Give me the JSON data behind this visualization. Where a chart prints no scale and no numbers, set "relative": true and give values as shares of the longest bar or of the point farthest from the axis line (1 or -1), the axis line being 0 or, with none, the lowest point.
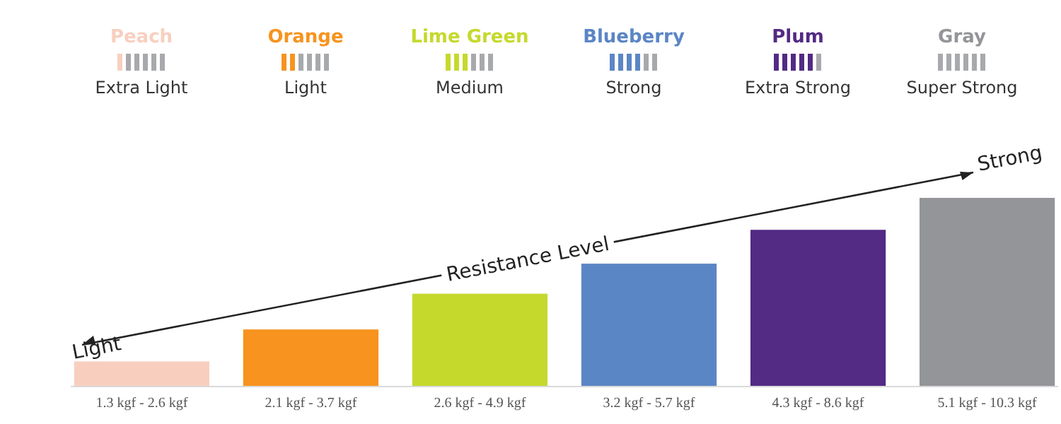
{
  "chart_data": {
    "type": "bar",
    "relative": true,
    "legend": "top",
    "categories": [
      "1.3 kgf - 2.6 kgf",
      "2.1 kgf - 3.7 kgf",
      "2.6 kgf - 4.9 kgf",
      "3.2 kgf - 5.7 kgf",
      "4.3 kgf - 8.6 kgf",
      "5.1 kgf - 10.3 kgf"
    ],
    "series": [
      {
        "name": "Peach",
        "color": "#f8cfbf",
        "values": [
          0.13,
          null,
          null,
          null,
          null,
          null
        ]
      },
      {
        "name": "Orange",
        "color": "#f7931e",
        "values": [
          null,
          0.3,
          null,
          null,
          null,
          null
        ]
      },
      {
        "name": "Lime Green",
        "color": "#c5d92d",
        "values": [
          null,
          null,
          0.49,
          null,
          null,
          null
        ]
      },
      {
        "name": "Blueberry",
        "color": "#5b86c5",
        "values": [
          null,
          null,
          null,
          0.65,
          null,
          null
        ]
      },
      {
        "name": "Plum",
        "color": "#532a84",
        "values": [
          null,
          null,
          null,
          null,
          0.83,
          null
        ]
      },
      {
        "name": "Gray",
        "color": "#939598",
        "values": [
          null,
          null,
          null,
          null,
          null,
          1
        ]
      }
    ],
    "annotations": [
      "Extra Light",
      "Light",
      "Medium",
      "Strong",
      "Extra Strong",
      "Super Strong",
      "Light",
      "Resistance Level",
      "Strong"
    ]
  }
}
